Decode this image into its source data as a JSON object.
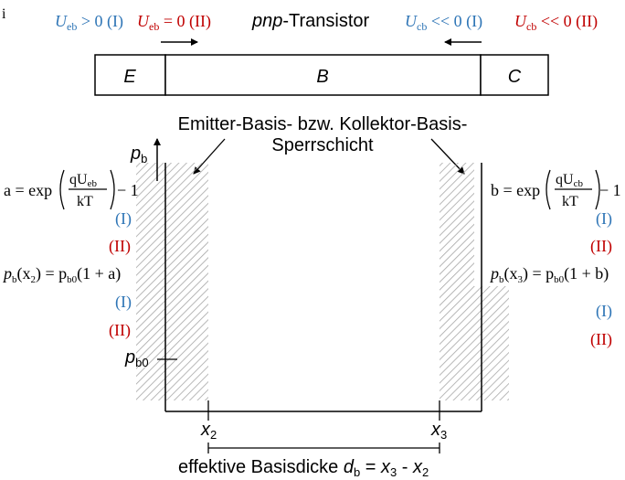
{
  "corner_mark": "i",
  "header": {
    "title_italic": "pnp",
    "title_rest": "-Transistor",
    "ueb_pos": {
      "sym": "U",
      "sub": "eb",
      "rel": " > 0 (I)"
    },
    "ueb_zero": {
      "sym": "U",
      "sub": "eb",
      "rel": " = 0 (II)"
    },
    "ucb_blue": {
      "sym": "U",
      "sub": "cb",
      "rel": " << 0 (I)"
    },
    "ucb_red": {
      "sym": "U",
      "sub": "cb",
      "rel": " << 0 (II)"
    }
  },
  "regions": {
    "emitter": "E",
    "base": "B",
    "collector": "C"
  },
  "junction_label": {
    "line1": "Emitter-Basis- bzw. Kollektor-Basis-",
    "line2": "Sperrschicht"
  },
  "axis": {
    "pb": "p",
    "pb_sub": "b",
    "pb0": "p",
    "pb0_sub": "b0"
  },
  "left_eq": {
    "a_lhs": "a = exp",
    "frac_num": "qU",
    "frac_num_sub": "eb",
    "frac_den": "kT",
    "tail": "− 1",
    "mark1": "(I)",
    "mark2": "(II)",
    "pbx2": "p",
    "pbx2_sub": "b",
    "pbx2_arg": "(x",
    "pbx2_arg_sub": "2",
    "pbx2_rhs": ") = p",
    "pbx2_rhs_sub": "b0",
    "pbx2_tail": "(1 + a)",
    "mark3": "(I)",
    "mark4": "(II)"
  },
  "right_eq": {
    "b_lhs": "b = exp",
    "frac_num": "qU",
    "frac_num_sub": "cb",
    "frac_den": "kT",
    "tail": "− 1",
    "mark1": "(I)",
    "mark2": "(II)",
    "pbx3": "p",
    "pbx3_sub": "b",
    "pbx3_arg": "(x",
    "pbx3_arg_sub": "3",
    "pbx3_rhs": ") = p",
    "pbx3_rhs_sub": "b0",
    "pbx3_tail": "(1 + b)",
    "mark3": "(I)",
    "mark4": "(II)"
  },
  "x_labels": {
    "x2": "x",
    "x2_sub": "2",
    "x3": "x",
    "x3_sub": "3"
  },
  "bottom_label": {
    "text": "effektive Basisdicke ",
    "d": "d",
    "d_sub": "b",
    "eq": " = ",
    "x3": "x",
    "x3_sub": "3",
    "minus": " - ",
    "x2": "x",
    "x2_sub": "2"
  },
  "colors": {
    "blue": "#2e75b6",
    "red": "#c00000",
    "hatch": "#a6a6a6"
  }
}
